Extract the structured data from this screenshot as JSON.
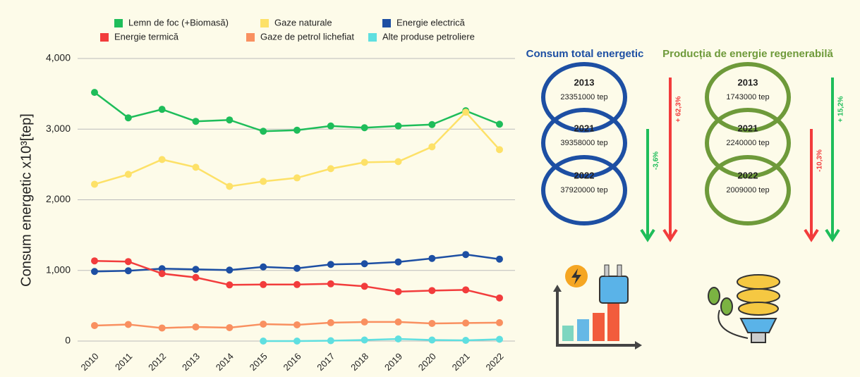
{
  "chart_data": {
    "type": "line",
    "y_label": "Consum energetic x10³[tep]",
    "categories": [
      "2010",
      "2011",
      "2012",
      "2013",
      "2014",
      "2015",
      "2016",
      "2017",
      "2018",
      "2019",
      "2020",
      "2021",
      "2022"
    ],
    "series": [
      {
        "name": "Lemn de foc (+Biomasă)",
        "color": "#1ebd5a",
        "values": [
          3520,
          3160,
          3280,
          3110,
          3130,
          2970,
          2985,
          3045,
          3020,
          3045,
          3065,
          3260,
          3070
        ]
      },
      {
        "name": "Gaze naturale",
        "color": "#fde168",
        "values": [
          2220,
          2360,
          2570,
          2460,
          2190,
          2260,
          2310,
          2440,
          2530,
          2540,
          2750,
          3240,
          2710
        ]
      },
      {
        "name": "Energie electrică",
        "color": "#1d4fa3",
        "values": [
          985,
          995,
          1025,
          1015,
          1005,
          1050,
          1030,
          1085,
          1095,
          1120,
          1170,
          1225,
          1160
        ]
      },
      {
        "name": "Energie termică",
        "color": "#f23c3c",
        "values": [
          1135,
          1125,
          955,
          900,
          795,
          800,
          800,
          810,
          775,
          700,
          715,
          725,
          610
        ]
      },
      {
        "name": "Gaze de petrol lichefiat",
        "color": "#f99060",
        "values": [
          220,
          235,
          185,
          200,
          190,
          240,
          230,
          260,
          270,
          270,
          250,
          255,
          260
        ]
      },
      {
        "name": "Alte produse petroliere",
        "color": "#5fdfe0",
        "values": [
          null,
          null,
          null,
          null,
          null,
          0,
          0,
          5,
          15,
          30,
          15,
          10,
          25
        ]
      }
    ],
    "ylim": [
      0,
      4000
    ],
    "yticks": [
      0,
      {
        "value": 1000,
        "label": "1,000"
      },
      {
        "value": 2000,
        "label": "2,000"
      },
      {
        "value": 3000,
        "label": "3,000"
      },
      {
        "value": 4000,
        "label": "4,000"
      }
    ],
    "grid": true
  },
  "panels": [
    {
      "title": "Consum total energetic",
      "color": "#1d4fa3",
      "circles": [
        {
          "year": "2013",
          "value": "23351000 tep"
        },
        {
          "year": "2021",
          "value": "39358000 tep"
        },
        {
          "year": "2022",
          "value": "37920000 tep"
        }
      ],
      "arrows": [
        {
          "label": "-3,6%",
          "color": "#1ebd5a"
        },
        {
          "label": "+ 62,3%",
          "color": "#f23c3c"
        }
      ]
    },
    {
      "title": "Producția de energie regenerabilă",
      "color": "#6e9a3a",
      "circles": [
        {
          "year": "2013",
          "value": "1743000 tep"
        },
        {
          "year": "2021",
          "value": "2240000 tep"
        },
        {
          "year": "2022",
          "value": "2009000 tep"
        }
      ],
      "arrows": [
        {
          "label": "-10,3%",
          "color": "#f23c3c"
        },
        {
          "label": "+ 15,2%",
          "color": "#1ebd5a"
        }
      ]
    }
  ]
}
